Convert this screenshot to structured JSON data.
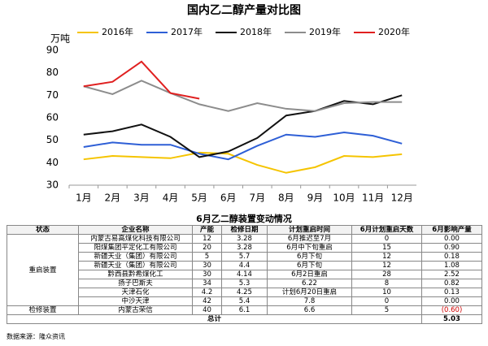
{
  "chart_data": {
    "type": "line",
    "title": "国内乙二醇产量对比图",
    "y_label": "万吨",
    "categories": [
      "1月",
      "2月",
      "3月",
      "4月",
      "5月",
      "6月",
      "7月",
      "8月",
      "9月",
      "10月",
      "11月",
      "12月"
    ],
    "series": [
      {
        "name": "2016年",
        "color": "#f5c400",
        "values": [
          41.5,
          43,
          42.5,
          42,
          44.5,
          44,
          39,
          35.5,
          38,
          43,
          42.5,
          43.8
        ]
      },
      {
        "name": "2017年",
        "color": "#2e5fd6",
        "values": [
          47,
          49,
          48,
          48,
          44,
          41.5,
          47.5,
          52.5,
          51.5,
          53.5,
          52,
          48.5
        ]
      },
      {
        "name": "2018年",
        "color": "#111111",
        "values": [
          52.5,
          54,
          57,
          51.5,
          42.5,
          45,
          51,
          61,
          63,
          67.5,
          66,
          70
        ]
      },
      {
        "name": "2019年",
        "color": "#8c8c8c",
        "values": [
          74,
          70.5,
          76.5,
          71,
          66,
          63,
          66.5,
          64,
          63,
          66.5,
          67,
          67
        ]
      },
      {
        "name": "2020年",
        "color": "#e02020",
        "values": [
          74,
          76,
          85,
          71,
          68.5,
          null,
          null,
          null,
          null,
          null,
          null,
          null
        ]
      }
    ],
    "ylim": [
      30,
      90
    ],
    "yticks": [
      30,
      40,
      50,
      60,
      70,
      80,
      90
    ],
    "grid": false,
    "legend": "top"
  },
  "table": {
    "title": "6月乙二醇装置变动情况",
    "columns": [
      "状态",
      "企业名称",
      "产能",
      "检修日期",
      "计划重启时间",
      "6月计划重启天数",
      "6月影响产量"
    ],
    "groups": [
      {
        "status": "重启装置",
        "rows": [
          [
            "内蒙古易高煤化科技有限公司",
            "12",
            "3.28",
            "6月推迟至7月",
            "0",
            "0.00"
          ],
          [
            "阳煤集团平定化工有限公司",
            "20",
            "3.28",
            "6月中下旬重启",
            "15",
            "0.90"
          ],
          [
            "新疆天业（集团）有限公司",
            "5",
            "5.7",
            "6月下旬",
            "12",
            "0.18"
          ],
          [
            "新疆天业（集团）有限公司",
            "30",
            "4.4",
            "6月下旬",
            "12",
            "1.08"
          ],
          [
            "黔西县黔希煤化工",
            "30",
            "4.14",
            "6月2日重启",
            "28",
            "2.52"
          ],
          [
            "扬子巴斯夫",
            "34",
            "5.3",
            "6.22",
            "8",
            "0.82"
          ],
          [
            "天津石化",
            "4.2",
            "4.25",
            "计划6月20日重启",
            "10",
            "0.13"
          ],
          [
            "中沙天津",
            "42",
            "5.4",
            "7.8",
            "0",
            "0.00"
          ]
        ]
      },
      {
        "status": "检修装置",
        "rows": [
          [
            "内蒙古荣信",
            "40",
            "6.1",
            "6.6",
            "5",
            "(0.60)"
          ]
        ]
      }
    ],
    "total": {
      "label": "总计",
      "value": "5.03"
    },
    "source": "数据来源：隆众资讯"
  }
}
